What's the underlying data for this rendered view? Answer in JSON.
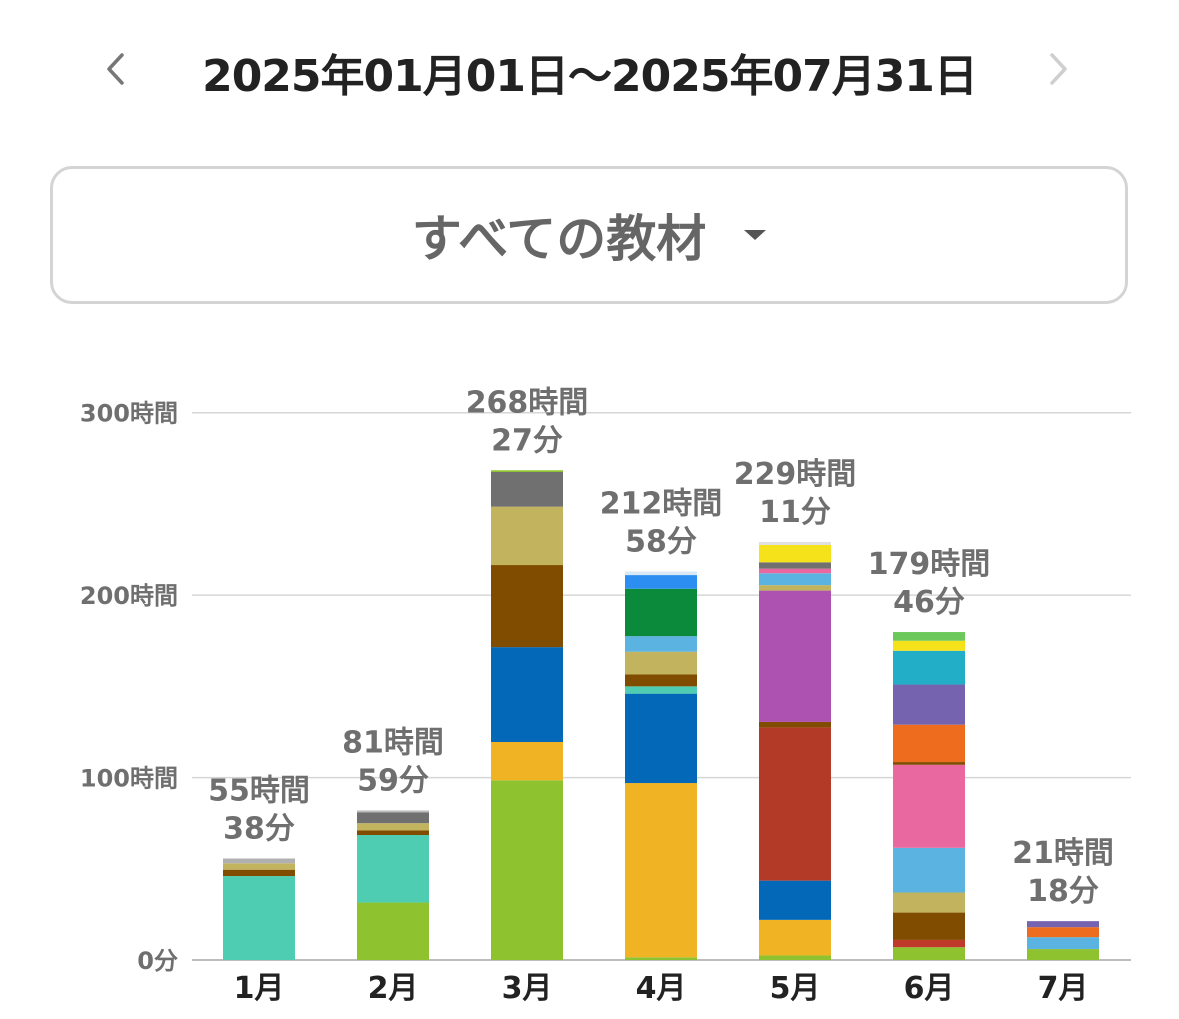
{
  "header": {
    "date_range": "2025年01月01日〜2025年07月31日",
    "prev_icon": "chevron-left-icon",
    "next_icon": "chevron-right-icon"
  },
  "filter": {
    "selected_label": "すべての教材",
    "dropdown_icon": "caret-down-icon"
  },
  "colors": {
    "teal": "#4ecdb3",
    "lime": "#8fc22f",
    "orange": "#f0b323",
    "brown": "#804c00",
    "khaki": "#c2b45e",
    "gray": "#707070",
    "blue": "#0368b8",
    "green": "#0c8a3c",
    "sky": "#5ab3e0",
    "brightblue": "#2b8ef0",
    "red": "#b43a28",
    "purple": "#ad52b0",
    "pink": "#e968a0",
    "indigo": "#7563b0",
    "cyan": "#22aec6",
    "yellow": "#f5e21a",
    "vermilion": "#ee6c1e",
    "lightgray": "#bdbdbd",
    "lightgreen": "#6cc85a",
    "darkred": "#c0392b"
  },
  "chart_data": {
    "type": "bar",
    "stacked": true,
    "categories": [
      "1月",
      "2月",
      "3月",
      "4月",
      "5月",
      "6月",
      "7月"
    ],
    "y_ticks": [
      "0分",
      "100時間",
      "200時間",
      "300時間"
    ],
    "ylim": [
      0,
      300
    ],
    "unit": "hours",
    "grid": true,
    "totals_label": [
      [
        "55時間",
        "38分"
      ],
      [
        "81時間",
        "59分"
      ],
      [
        "268時間",
        "27分"
      ],
      [
        "212時間",
        "58分"
      ],
      [
        "229時間",
        "11分"
      ],
      [
        "179時間",
        "46分"
      ],
      [
        "21時間",
        "18分"
      ]
    ],
    "totals": [
      55.63,
      81.98,
      268.45,
      212.97,
      229.18,
      179.77,
      21.3
    ],
    "stacks": [
      [
        {
          "value": 46,
          "color": "#4ecdb3"
        },
        {
          "value": 3.5,
          "color": "#804c00"
        },
        {
          "value": 3.5,
          "color": "#c2b45e"
        },
        {
          "value": 2.63,
          "color": "#b0b0b0"
        }
      ],
      [
        {
          "value": 31.5,
          "color": "#8fc22f"
        },
        {
          "value": 37,
          "color": "#4ecdb3"
        },
        {
          "value": 2.5,
          "color": "#804c00"
        },
        {
          "value": 4,
          "color": "#c2b45e"
        },
        {
          "value": 6,
          "color": "#707070"
        },
        {
          "value": 0.98,
          "color": "#bdbdbd"
        }
      ],
      [
        {
          "value": 98.5,
          "color": "#8fc22f"
        },
        {
          "value": 21,
          "color": "#f0b323"
        },
        {
          "value": 52,
          "color": "#0368b8"
        },
        {
          "value": 45,
          "color": "#804c00"
        },
        {
          "value": 32,
          "color": "#c2b45e"
        },
        {
          "value": 19,
          "color": "#707070"
        },
        {
          "value": 0.95,
          "color": "#8fc22f"
        }
      ],
      [
        {
          "value": 1.5,
          "color": "#8fc22f"
        },
        {
          "value": 95.5,
          "color": "#f0b323"
        },
        {
          "value": 49,
          "color": "#0368b8"
        },
        {
          "value": 4,
          "color": "#4ecdb3"
        },
        {
          "value": 6.5,
          "color": "#804c00"
        },
        {
          "value": 12.5,
          "color": "#c2b45e"
        },
        {
          "value": 8.5,
          "color": "#5ab3e0"
        },
        {
          "value": 26,
          "color": "#0c8a3c"
        },
        {
          "value": 7.5,
          "color": "#2b8ef0"
        },
        {
          "value": 1.97,
          "color": "#d8e8f5"
        }
      ],
      [
        {
          "value": 2.5,
          "color": "#8fc22f"
        },
        {
          "value": 19.5,
          "color": "#f0b323"
        },
        {
          "value": 21.5,
          "color": "#0368b8"
        },
        {
          "value": 84,
          "color": "#b43a28"
        },
        {
          "value": 3,
          "color": "#804c00"
        },
        {
          "value": 72,
          "color": "#ad52b0"
        },
        {
          "value": 3,
          "color": "#c2b45e"
        },
        {
          "value": 6.5,
          "color": "#5ab3e0"
        },
        {
          "value": 2.5,
          "color": "#e968a0"
        },
        {
          "value": 3.5,
          "color": "#707070"
        },
        {
          "value": 9.5,
          "color": "#f5e21a"
        },
        {
          "value": 1.68,
          "color": "#e0e0e0"
        }
      ],
      [
        {
          "value": 7,
          "color": "#8fc22f"
        },
        {
          "value": 4,
          "color": "#c0392b"
        },
        {
          "value": 15,
          "color": "#804c00"
        },
        {
          "value": 11,
          "color": "#c2b45e"
        },
        {
          "value": 24.5,
          "color": "#5ab3e0"
        },
        {
          "value": 45.5,
          "color": "#e968a0"
        },
        {
          "value": 1.5,
          "color": "#804c00"
        },
        {
          "value": 20.5,
          "color": "#ee6c1e"
        },
        {
          "value": 22,
          "color": "#7563b0"
        },
        {
          "value": 18.5,
          "color": "#22aec6"
        },
        {
          "value": 5.5,
          "color": "#f5e21a"
        },
        {
          "value": 4.77,
          "color": "#6cc85a"
        }
      ],
      [
        {
          "value": 6,
          "color": "#8fc22f"
        },
        {
          "value": 6.5,
          "color": "#5ab3e0"
        },
        {
          "value": 5.5,
          "color": "#ee6c1e"
        },
        {
          "value": 3.3,
          "color": "#7563b0"
        }
      ]
    ]
  }
}
